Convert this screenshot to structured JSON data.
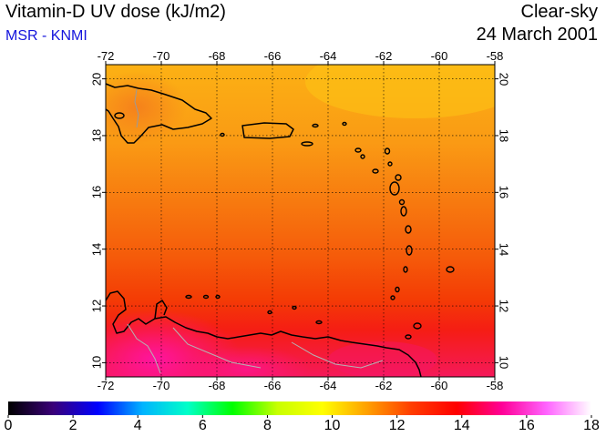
{
  "header": {
    "title": "Vitamin-D UV dose (kJ/m2)",
    "subtitle": "MSR - KNMI",
    "condition": "Clear-sky",
    "date": "24 March 2001"
  },
  "map": {
    "lon_range": [
      -72,
      -58
    ],
    "lat_range": [
      9.5,
      20.5
    ],
    "lon_ticks": [
      "-72",
      "-70",
      "-68",
      "-66",
      "-64",
      "-62",
      "-60",
      "-58"
    ],
    "lat_ticks": [
      "20",
      "18",
      "16",
      "14",
      "12",
      "10"
    ],
    "gridlines": true
  },
  "colorbar": {
    "labels": [
      "0",
      "2",
      "4",
      "6",
      "8",
      "10",
      "12",
      "14",
      "16",
      "18"
    ],
    "range": [
      0,
      18
    ],
    "colors": [
      "#000000",
      "#3a0078",
      "#0000ff",
      "#00b4ff",
      "#00ffc8",
      "#00ff00",
      "#c8ff00",
      "#ffff00",
      "#ffa000",
      "#ff3c00",
      "#ff0000",
      "#ff0096",
      "#ff64ff",
      "#ffffff"
    ]
  }
}
